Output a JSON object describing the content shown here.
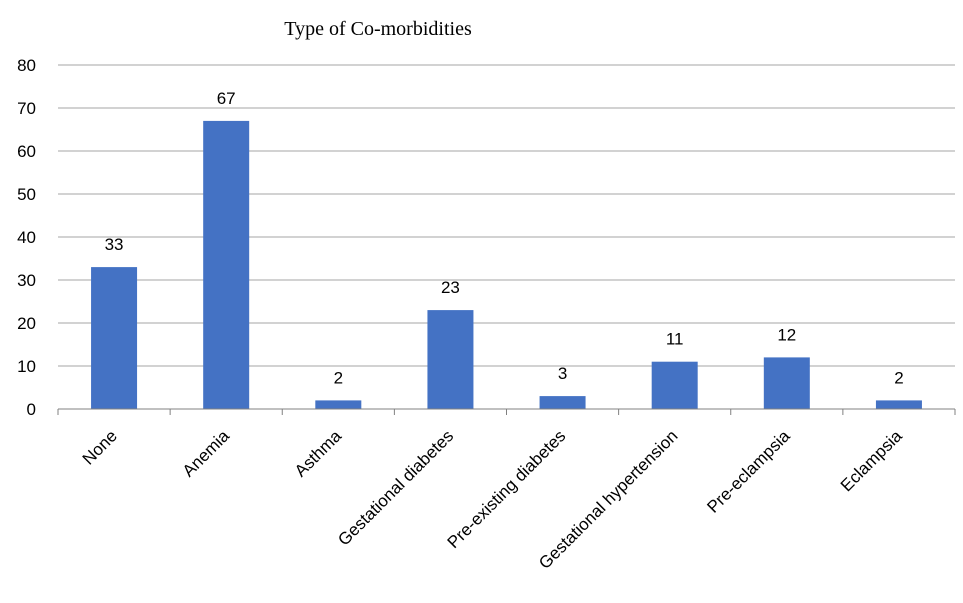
{
  "chart_data": {
    "type": "bar",
    "title": "Type of Co-morbidities",
    "xlabel": "",
    "ylabel": "",
    "categories": [
      "None",
      "Anemia",
      "Asthma",
      "Gestational diabetes",
      "Pre-existing diabetes",
      "Gestational hypertension",
      "Pre-eclampsia",
      "Eclampsia"
    ],
    "values": [
      33,
      67,
      2,
      23,
      3,
      11,
      12,
      2
    ],
    "ylim": [
      0,
      80
    ],
    "yticks": [
      0,
      10,
      20,
      30,
      40,
      50,
      60,
      70,
      80
    ],
    "grid": true,
    "legend": "none",
    "bar_color": "#4472c4",
    "data_labels": true
  }
}
